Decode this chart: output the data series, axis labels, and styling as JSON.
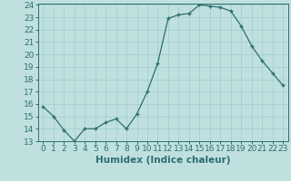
{
  "x": [
    0,
    1,
    2,
    3,
    4,
    5,
    6,
    7,
    8,
    9,
    10,
    11,
    12,
    13,
    14,
    15,
    16,
    17,
    18,
    19,
    20,
    21,
    22,
    23
  ],
  "y": [
    15.8,
    15.0,
    13.9,
    13.0,
    14.0,
    14.0,
    14.5,
    14.8,
    14.0,
    15.2,
    17.0,
    19.3,
    22.9,
    23.2,
    23.3,
    24.0,
    23.9,
    23.8,
    23.5,
    22.3,
    20.7,
    19.5,
    18.5,
    17.5
  ],
  "xlabel": "Humidex (Indice chaleur)",
  "ylim": [
    13,
    24
  ],
  "xlim_min": -0.5,
  "xlim_max": 23.5,
  "yticks": [
    13,
    14,
    15,
    16,
    17,
    18,
    19,
    20,
    21,
    22,
    23,
    24
  ],
  "xticks": [
    0,
    1,
    2,
    3,
    4,
    5,
    6,
    7,
    8,
    9,
    10,
    11,
    12,
    13,
    14,
    15,
    16,
    17,
    18,
    19,
    20,
    21,
    22,
    23
  ],
  "line_color": "#2e6e6e",
  "marker": "+",
  "bg_color": "#c0e0e0",
  "grid_color": "#a0cccc",
  "tick_fontsize": 6.5,
  "xlabel_fontsize": 7.5
}
